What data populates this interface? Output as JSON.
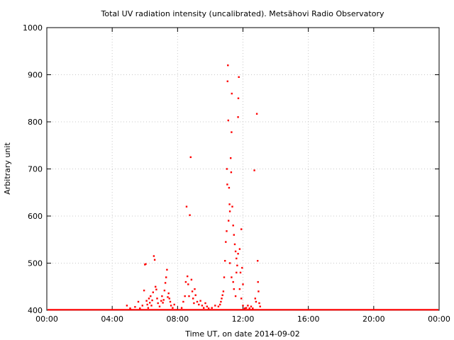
{
  "chart_data": {
    "type": "scatter",
    "title": "Total UV radiation intensity (uncalibrated). Metsähovi Radio Observatory",
    "xlabel": "Time UT, on date 2014-09-02",
    "ylabel": "Arbitrary unit",
    "xlim": [
      0,
      24
    ],
    "ylim": [
      400,
      1000
    ],
    "xticks": [
      0,
      4,
      8,
      12,
      16,
      20,
      24
    ],
    "xtick_labels": [
      "00:00",
      "04:00",
      "08:00",
      "12:00",
      "16:00",
      "20:00",
      "00:00"
    ],
    "yticks": [
      400,
      500,
      600,
      700,
      800,
      900,
      1000
    ],
    "ytick_labels": [
      "400",
      "500",
      "600",
      "700",
      "800",
      "900",
      "1000"
    ],
    "grid": true,
    "baseline": 401,
    "series": [
      {
        "color": "#ff0000",
        "points": [
          [
            4.9,
            410
          ],
          [
            5.1,
            404
          ],
          [
            5.4,
            407
          ],
          [
            5.6,
            418
          ],
          [
            5.7,
            404
          ],
          [
            5.85,
            410
          ],
          [
            5.95,
            442
          ],
          [
            6.0,
            497
          ],
          [
            6.05,
            498
          ],
          [
            6.1,
            420
          ],
          [
            6.15,
            412
          ],
          [
            6.2,
            405
          ],
          [
            6.25,
            425
          ],
          [
            6.3,
            416
          ],
          [
            6.35,
            430
          ],
          [
            6.4,
            410
          ],
          [
            6.45,
            421
          ],
          [
            6.5,
            438
          ],
          [
            6.55,
            515
          ],
          [
            6.6,
            507
          ],
          [
            6.65,
            450
          ],
          [
            6.7,
            444
          ],
          [
            6.75,
            425
          ],
          [
            6.8,
            415
          ],
          [
            6.9,
            408
          ],
          [
            7.0,
            420
          ],
          [
            7.05,
            430
          ],
          [
            7.1,
            416
          ],
          [
            7.15,
            422
          ],
          [
            7.2,
            442
          ],
          [
            7.25,
            458
          ],
          [
            7.3,
            470
          ],
          [
            7.35,
            486
          ],
          [
            7.4,
            428
          ],
          [
            7.45,
            436
          ],
          [
            7.5,
            425
          ],
          [
            7.55,
            418
          ],
          [
            7.6,
            410
          ],
          [
            7.7,
            405
          ],
          [
            7.8,
            412
          ],
          [
            8.25,
            405
          ],
          [
            8.35,
            418
          ],
          [
            8.45,
            430
          ],
          [
            8.5,
            460
          ],
          [
            8.55,
            620
          ],
          [
            8.6,
            472
          ],
          [
            8.65,
            455
          ],
          [
            8.7,
            430
          ],
          [
            8.75,
            602
          ],
          [
            8.8,
            725
          ],
          [
            8.85,
            465
          ],
          [
            8.9,
            440
          ],
          [
            8.95,
            425
          ],
          [
            9.0,
            415
          ],
          [
            9.05,
            445
          ],
          [
            9.1,
            432
          ],
          [
            9.2,
            418
          ],
          [
            9.3,
            412
          ],
          [
            9.4,
            420
          ],
          [
            9.5,
            410
          ],
          [
            9.6,
            405
          ],
          [
            9.7,
            415
          ],
          [
            9.8,
            408
          ],
          [
            9.9,
            404
          ],
          [
            10.1,
            405
          ],
          [
            10.3,
            410
          ],
          [
            10.5,
            408
          ],
          [
            10.6,
            412
          ],
          [
            10.65,
            418
          ],
          [
            10.7,
            425
          ],
          [
            10.75,
            432
          ],
          [
            10.8,
            440
          ],
          [
            10.85,
            470
          ],
          [
            10.9,
            505
          ],
          [
            10.95,
            545
          ],
          [
            11.0,
            568
          ],
          [
            11.02,
            700
          ],
          [
            11.04,
            667
          ],
          [
            11.06,
            886
          ],
          [
            11.08,
            920
          ],
          [
            11.1,
            803
          ],
          [
            11.12,
            590
          ],
          [
            11.15,
            660
          ],
          [
            11.18,
            625
          ],
          [
            11.2,
            610
          ],
          [
            11.25,
            723
          ],
          [
            11.28,
            693
          ],
          [
            11.3,
            778
          ],
          [
            11.32,
            860
          ],
          [
            11.35,
            620
          ],
          [
            11.4,
            580
          ],
          [
            11.45,
            560
          ],
          [
            11.5,
            540
          ],
          [
            11.55,
            525
          ],
          [
            11.6,
            510
          ],
          [
            11.65,
            495
          ],
          [
            11.7,
            810
          ],
          [
            11.72,
            850
          ],
          [
            11.75,
            895
          ],
          [
            11.8,
            530
          ],
          [
            11.85,
            480
          ],
          [
            11.9,
            572
          ],
          [
            11.95,
            490
          ],
          [
            12.0,
            455
          ],
          [
            11.2,
            500
          ],
          [
            11.3,
            470
          ],
          [
            11.4,
            460
          ],
          [
            11.45,
            445
          ],
          [
            11.55,
            430
          ],
          [
            11.6,
            480
          ],
          [
            11.7,
            520
          ],
          [
            11.8,
            445
          ],
          [
            11.9,
            425
          ],
          [
            12.0,
            410
          ],
          [
            12.1,
            404
          ],
          [
            12.2,
            405
          ],
          [
            12.3,
            410
          ],
          [
            12.4,
            404
          ],
          [
            12.5,
            408
          ],
          [
            12.6,
            404
          ],
          [
            12.7,
            697
          ],
          [
            12.75,
            425
          ],
          [
            12.8,
            418
          ],
          [
            12.85,
            817
          ],
          [
            12.9,
            505
          ],
          [
            12.92,
            460
          ],
          [
            12.95,
            440
          ],
          [
            13.0,
            415
          ],
          [
            13.05,
            408
          ]
        ]
      }
    ]
  }
}
